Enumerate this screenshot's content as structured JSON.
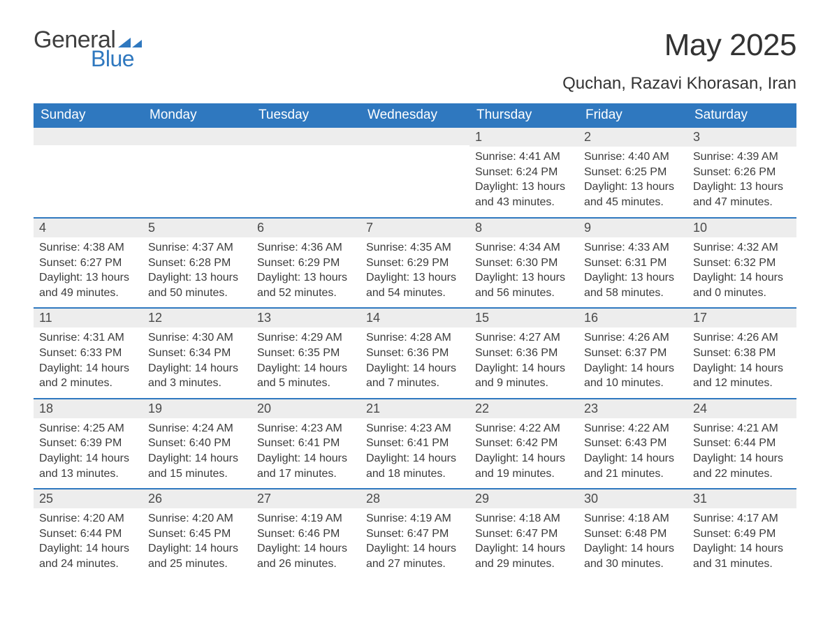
{
  "brand": {
    "word1": "General",
    "word2": "Blue",
    "accent_color": "#2f78bf",
    "text_color": "#3f3f3f"
  },
  "title": "May 2025",
  "location": "Quchan, Razavi Khorasan, Iran",
  "colors": {
    "header_bg": "#2f78bf",
    "header_text": "#ffffff",
    "daynum_bg": "#ededed",
    "body_text": "#383838",
    "rule": "#2f78bf",
    "page_bg": "#ffffff"
  },
  "typography": {
    "month_title_pt": 44,
    "location_pt": 24,
    "weekday_pt": 19,
    "daynum_pt": 18,
    "body_pt": 16,
    "family": "Arial"
  },
  "layout": {
    "columns": 7,
    "rows": 5,
    "leading_blanks": 4,
    "aspect_w": 1188,
    "aspect_h": 918
  },
  "weekdays": [
    "Sunday",
    "Monday",
    "Tuesday",
    "Wednesday",
    "Thursday",
    "Friday",
    "Saturday"
  ],
  "days": [
    {
      "n": "1",
      "sunrise": "Sunrise: 4:41 AM",
      "sunset": "Sunset: 6:24 PM",
      "daylight": "Daylight: 13 hours and 43 minutes."
    },
    {
      "n": "2",
      "sunrise": "Sunrise: 4:40 AM",
      "sunset": "Sunset: 6:25 PM",
      "daylight": "Daylight: 13 hours and 45 minutes."
    },
    {
      "n": "3",
      "sunrise": "Sunrise: 4:39 AM",
      "sunset": "Sunset: 6:26 PM",
      "daylight": "Daylight: 13 hours and 47 minutes."
    },
    {
      "n": "4",
      "sunrise": "Sunrise: 4:38 AM",
      "sunset": "Sunset: 6:27 PM",
      "daylight": "Daylight: 13 hours and 49 minutes."
    },
    {
      "n": "5",
      "sunrise": "Sunrise: 4:37 AM",
      "sunset": "Sunset: 6:28 PM",
      "daylight": "Daylight: 13 hours and 50 minutes."
    },
    {
      "n": "6",
      "sunrise": "Sunrise: 4:36 AM",
      "sunset": "Sunset: 6:29 PM",
      "daylight": "Daylight: 13 hours and 52 minutes."
    },
    {
      "n": "7",
      "sunrise": "Sunrise: 4:35 AM",
      "sunset": "Sunset: 6:29 PM",
      "daylight": "Daylight: 13 hours and 54 minutes."
    },
    {
      "n": "8",
      "sunrise": "Sunrise: 4:34 AM",
      "sunset": "Sunset: 6:30 PM",
      "daylight": "Daylight: 13 hours and 56 minutes."
    },
    {
      "n": "9",
      "sunrise": "Sunrise: 4:33 AM",
      "sunset": "Sunset: 6:31 PM",
      "daylight": "Daylight: 13 hours and 58 minutes."
    },
    {
      "n": "10",
      "sunrise": "Sunrise: 4:32 AM",
      "sunset": "Sunset: 6:32 PM",
      "daylight": "Daylight: 14 hours and 0 minutes."
    },
    {
      "n": "11",
      "sunrise": "Sunrise: 4:31 AM",
      "sunset": "Sunset: 6:33 PM",
      "daylight": "Daylight: 14 hours and 2 minutes."
    },
    {
      "n": "12",
      "sunrise": "Sunrise: 4:30 AM",
      "sunset": "Sunset: 6:34 PM",
      "daylight": "Daylight: 14 hours and 3 minutes."
    },
    {
      "n": "13",
      "sunrise": "Sunrise: 4:29 AM",
      "sunset": "Sunset: 6:35 PM",
      "daylight": "Daylight: 14 hours and 5 minutes."
    },
    {
      "n": "14",
      "sunrise": "Sunrise: 4:28 AM",
      "sunset": "Sunset: 6:36 PM",
      "daylight": "Daylight: 14 hours and 7 minutes."
    },
    {
      "n": "15",
      "sunrise": "Sunrise: 4:27 AM",
      "sunset": "Sunset: 6:36 PM",
      "daylight": "Daylight: 14 hours and 9 minutes."
    },
    {
      "n": "16",
      "sunrise": "Sunrise: 4:26 AM",
      "sunset": "Sunset: 6:37 PM",
      "daylight": "Daylight: 14 hours and 10 minutes."
    },
    {
      "n": "17",
      "sunrise": "Sunrise: 4:26 AM",
      "sunset": "Sunset: 6:38 PM",
      "daylight": "Daylight: 14 hours and 12 minutes."
    },
    {
      "n": "18",
      "sunrise": "Sunrise: 4:25 AM",
      "sunset": "Sunset: 6:39 PM",
      "daylight": "Daylight: 14 hours and 13 minutes."
    },
    {
      "n": "19",
      "sunrise": "Sunrise: 4:24 AM",
      "sunset": "Sunset: 6:40 PM",
      "daylight": "Daylight: 14 hours and 15 minutes."
    },
    {
      "n": "20",
      "sunrise": "Sunrise: 4:23 AM",
      "sunset": "Sunset: 6:41 PM",
      "daylight": "Daylight: 14 hours and 17 minutes."
    },
    {
      "n": "21",
      "sunrise": "Sunrise: 4:23 AM",
      "sunset": "Sunset: 6:41 PM",
      "daylight": "Daylight: 14 hours and 18 minutes."
    },
    {
      "n": "22",
      "sunrise": "Sunrise: 4:22 AM",
      "sunset": "Sunset: 6:42 PM",
      "daylight": "Daylight: 14 hours and 19 minutes."
    },
    {
      "n": "23",
      "sunrise": "Sunrise: 4:22 AM",
      "sunset": "Sunset: 6:43 PM",
      "daylight": "Daylight: 14 hours and 21 minutes."
    },
    {
      "n": "24",
      "sunrise": "Sunrise: 4:21 AM",
      "sunset": "Sunset: 6:44 PM",
      "daylight": "Daylight: 14 hours and 22 minutes."
    },
    {
      "n": "25",
      "sunrise": "Sunrise: 4:20 AM",
      "sunset": "Sunset: 6:44 PM",
      "daylight": "Daylight: 14 hours and 24 minutes."
    },
    {
      "n": "26",
      "sunrise": "Sunrise: 4:20 AM",
      "sunset": "Sunset: 6:45 PM",
      "daylight": "Daylight: 14 hours and 25 minutes."
    },
    {
      "n": "27",
      "sunrise": "Sunrise: 4:19 AM",
      "sunset": "Sunset: 6:46 PM",
      "daylight": "Daylight: 14 hours and 26 minutes."
    },
    {
      "n": "28",
      "sunrise": "Sunrise: 4:19 AM",
      "sunset": "Sunset: 6:47 PM",
      "daylight": "Daylight: 14 hours and 27 minutes."
    },
    {
      "n": "29",
      "sunrise": "Sunrise: 4:18 AM",
      "sunset": "Sunset: 6:47 PM",
      "daylight": "Daylight: 14 hours and 29 minutes."
    },
    {
      "n": "30",
      "sunrise": "Sunrise: 4:18 AM",
      "sunset": "Sunset: 6:48 PM",
      "daylight": "Daylight: 14 hours and 30 minutes."
    },
    {
      "n": "31",
      "sunrise": "Sunrise: 4:17 AM",
      "sunset": "Sunset: 6:49 PM",
      "daylight": "Daylight: 14 hours and 31 minutes."
    }
  ]
}
